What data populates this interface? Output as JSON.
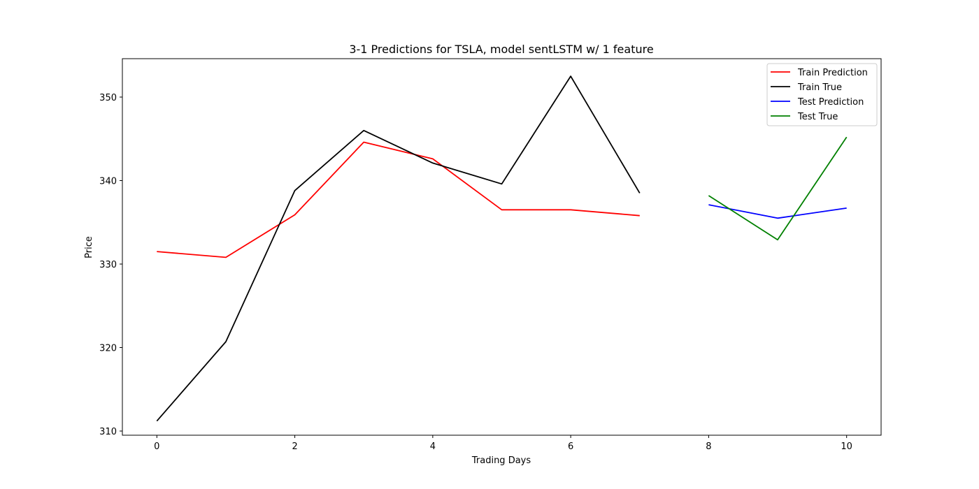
{
  "chart_data": {
    "type": "line",
    "title": "3-1 Predictions for TSLA, model sentLSTM w/ 1 feature",
    "xlabel": "Trading Days",
    "ylabel": "Price",
    "xlim": [
      -0.5,
      10.5
    ],
    "ylim": [
      309.5,
      354.6
    ],
    "xticks": [
      0,
      2,
      4,
      6,
      8,
      10
    ],
    "yticks": [
      310,
      320,
      330,
      340,
      350
    ],
    "grid": false,
    "legend_position": "top-right",
    "series": [
      {
        "name": "Train Prediction",
        "color": "#ff0000",
        "x": [
          0,
          1,
          2,
          3,
          4,
          5,
          6,
          7
        ],
        "y": [
          331.5,
          330.8,
          335.9,
          344.6,
          342.6,
          336.5,
          336.5,
          335.8
        ]
      },
      {
        "name": "Train True",
        "color": "#000000",
        "x": [
          0,
          1,
          2,
          3,
          4,
          5,
          6,
          7
        ],
        "y": [
          311.2,
          320.7,
          338.8,
          346.0,
          342.1,
          339.6,
          352.5,
          338.5
        ]
      },
      {
        "name": "Test Prediction",
        "color": "#0000ff",
        "x": [
          8,
          9,
          10
        ],
        "y": [
          337.1,
          335.5,
          336.7
        ]
      },
      {
        "name": "Test True",
        "color": "#008000",
        "x": [
          8,
          9,
          10
        ],
        "y": [
          338.2,
          332.9,
          345.2
        ]
      }
    ]
  }
}
